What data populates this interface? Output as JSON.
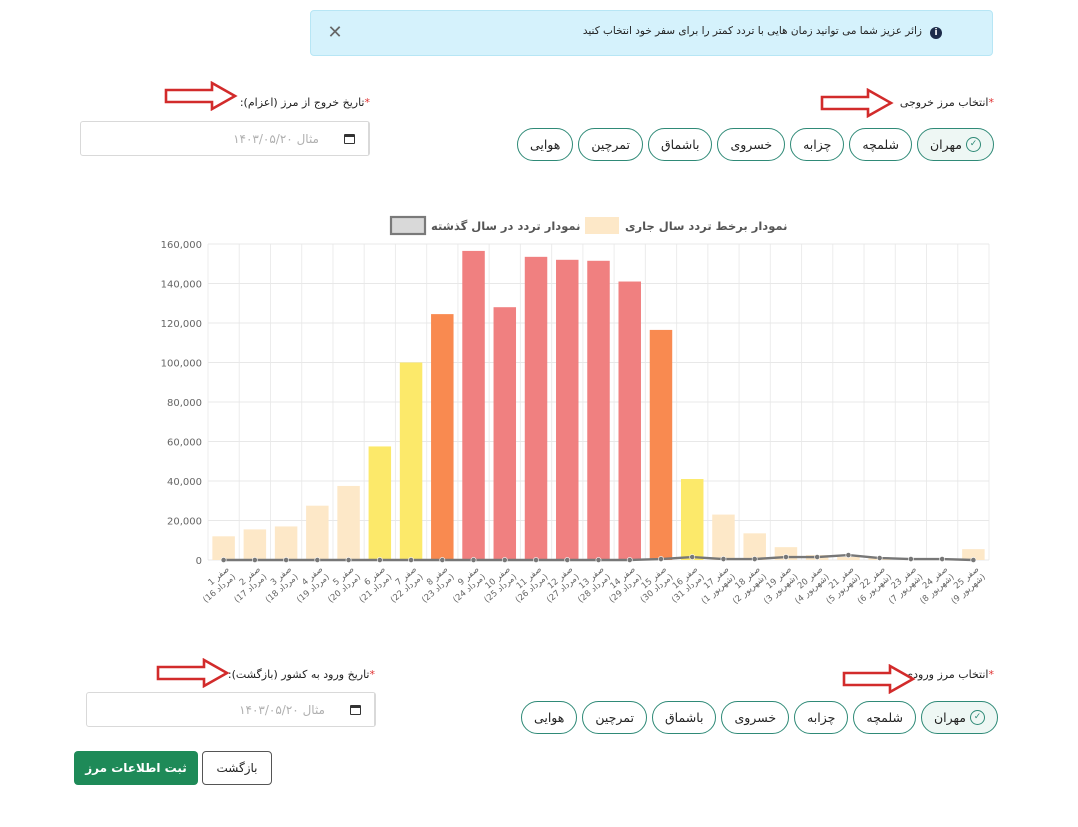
{
  "alert": {
    "message": "زائر عزیز شما می توانید زمان هایی با تردد کمتر را برای سفر خود انتخاب کنید",
    "info_glyph": "i",
    "close_glyph": "✕"
  },
  "exit_border": {
    "label": "انتخاب مرز خروجی",
    "required_mark": "*",
    "options": [
      "مهران",
      "شلمچه",
      "چزابه",
      "خسروی",
      "باشماق",
      "تمرچین",
      "هوایی"
    ],
    "selected": "مهران"
  },
  "exit_date": {
    "label": "تاریخ خروج از مرز (اعزام):",
    "required_mark": "*",
    "placeholder": "مثال ۱۴۰۳/۰۵/۲۰",
    "value": ""
  },
  "entry_border": {
    "label": "انتخاب مرز ورودی",
    "required_mark": "*",
    "options": [
      "مهران",
      "شلمچه",
      "چزابه",
      "خسروی",
      "باشماق",
      "تمرچین",
      "هوایی"
    ],
    "selected": "مهران"
  },
  "entry_date": {
    "label": "تاریخ ورود به کشور (بازگشت):",
    "required_mark": "*",
    "placeholder": "مثال ۱۴۰۳/۰۵/۲۰",
    "value": ""
  },
  "buttons": {
    "submit": "ثبت اطلاعات مرز",
    "back": "بازگشت"
  },
  "icons": {
    "alert": "info-icon",
    "close": "close-icon",
    "check": "check-circle-icon",
    "calendar": "calendar-icon",
    "arrow": "red-arrow-icon"
  },
  "colors": {
    "accent": "#2f8a77",
    "primary_button": "#1e8a58",
    "alert_bg": "#d5f2fc",
    "arrow": "#d22b2b",
    "bar_low": "#fde8c8",
    "bar_mid": "#fce96a",
    "bar_high": "#f98a50",
    "bar_peak": "#f08080",
    "line": "#777777"
  },
  "chart_data": {
    "type": "bar",
    "title": "",
    "legend": [
      "نمودار برخط تردد سال جاری",
      "نمودار تردد در سال گذشته"
    ],
    "legend_placement": "top-center",
    "categories": [
      [
        "1 صفر",
        "(16 مرداد)"
      ],
      [
        "2 صفر",
        "(17 مرداد)"
      ],
      [
        "3 صفر",
        "(18 مرداد)"
      ],
      [
        "4 صفر",
        "(19 مرداد)"
      ],
      [
        "5 صفر",
        "(20 مرداد)"
      ],
      [
        "6 صفر",
        "(21 مرداد)"
      ],
      [
        "7 صفر",
        "(22 مرداد)"
      ],
      [
        "8 صفر",
        "(23 مرداد)"
      ],
      [
        "9 صفر",
        "(24 مرداد)"
      ],
      [
        "10 صفر",
        "(25 مرداد)"
      ],
      [
        "11 صفر",
        "(26 مرداد)"
      ],
      [
        "12 صفر",
        "(27 مرداد)"
      ],
      [
        "13 صفر",
        "(28 مرداد)"
      ],
      [
        "14 صفر",
        "(29 مرداد)"
      ],
      [
        "15 صفر",
        "(30 مرداد)"
      ],
      [
        "16 صفر",
        "(31 مرداد)"
      ],
      [
        "17 صفر",
        "(1 شهریور)"
      ],
      [
        "18 صفر",
        "(2 شهریور)"
      ],
      [
        "19 صفر",
        "(3 شهریور)"
      ],
      [
        "20 صفر",
        "(4 شهریور)"
      ],
      [
        "21 صفر",
        "(5 شهریور)"
      ],
      [
        "22 صفر",
        "(6 شهریور)"
      ],
      [
        "23 صفر",
        "(7 شهریور)"
      ],
      [
        "24 صفر",
        "(8 شهریور)"
      ],
      [
        "25 صفر",
        "(9 شهریور)"
      ]
    ],
    "series": [
      {
        "name": "نمودار برخط تردد سال جاری",
        "type": "bar",
        "values": [
          12000,
          15500,
          17000,
          27500,
          37500,
          57500,
          100000,
          124500,
          156500,
          128000,
          153500,
          152000,
          151500,
          141000,
          116500,
          41000,
          23000,
          13500,
          6500,
          2500,
          1500,
          1000,
          500,
          500,
          5500
        ]
      },
      {
        "name": "نمودار تردد در سال گذشته",
        "type": "line",
        "values": [
          0,
          0,
          0,
          0,
          0,
          0,
          0,
          0,
          0,
          0,
          0,
          0,
          0,
          0,
          500,
          1500,
          500,
          500,
          1500,
          1500,
          2500,
          1000,
          500,
          500,
          0
        ]
      }
    ],
    "ylim": [
      0,
      160000
    ],
    "yticks": [
      "0",
      "20,000",
      "40,000",
      "60,000",
      "80,000",
      "100,000",
      "120,000",
      "140,000",
      "160,000"
    ],
    "grid": true
  }
}
